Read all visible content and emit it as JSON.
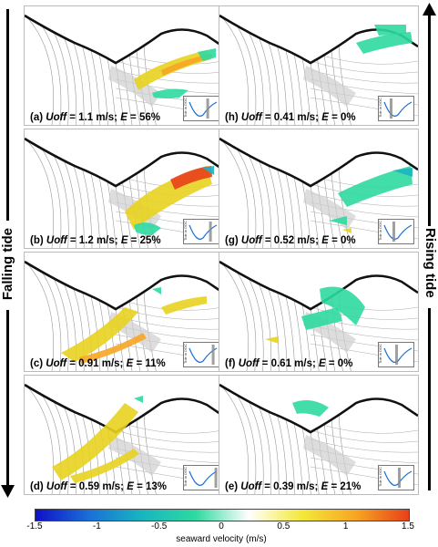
{
  "side_labels": {
    "left": "Falling tide",
    "right": "Rising tide"
  },
  "panels": [
    {
      "letter": "(a)",
      "uoff_label": "Uoff",
      "uoff_value": " = 1.1 m/s; ",
      "e_label": "E",
      "e_value": " = 56%",
      "tide_axis": "Tide in DOC"
    },
    {
      "letter": "(b)",
      "uoff_label": "Uoff",
      "uoff_value": " = 1.2 m/s; ",
      "e_label": "E",
      "e_value": " = 25%",
      "tide_axis": "Tide in DOC"
    },
    {
      "letter": "(c)",
      "uoff_label": "Uoff",
      "uoff_value": " = 0.91 m/s; ",
      "e_label": "E",
      "e_value": " = 11%",
      "tide_axis": "Tide in DOC"
    },
    {
      "letter": "(d)",
      "uoff_label": "Uoff",
      "uoff_value": " = 0.59 m/s; ",
      "e_label": "E",
      "e_value": " = 13%",
      "tide_axis": "Tide in DOC"
    },
    {
      "letter": "(h)",
      "uoff_label": "Uoff",
      "uoff_value": " = 0.41 m/s; ",
      "e_label": "E",
      "e_value": " = 0%",
      "tide_axis": "Tide in DOC"
    },
    {
      "letter": "(g)",
      "uoff_label": "Uoff",
      "uoff_value": " = 0.52 m/s; ",
      "e_label": "E",
      "e_value": " = 0%",
      "tide_axis": "Tide in DOC"
    },
    {
      "letter": "(f)",
      "uoff_label": "Uoff",
      "uoff_value": " = 0.61 m/s; ",
      "e_label": "E",
      "e_value": " = 0%",
      "tide_axis": "Tide in DOC"
    },
    {
      "letter": "(e)",
      "uoff_label": "Uoff",
      "uoff_value": " = 0.39 m/s; ",
      "e_label": "E",
      "e_value": " = 21%",
      "tide_axis": "Tide in DOC"
    }
  ],
  "colorbar": {
    "ticks": [
      "-1.5",
      "-1",
      "-0.5",
      "0",
      "0.5",
      "1",
      "1.5"
    ],
    "label": "seaward velocity (m/s)",
    "colors": [
      "#1010c8",
      "#1a6fd6",
      "#19b5c0",
      "#2fd9a0",
      "#ffffff",
      "#f4e83a",
      "#f6a623",
      "#e8401a"
    ]
  }
}
